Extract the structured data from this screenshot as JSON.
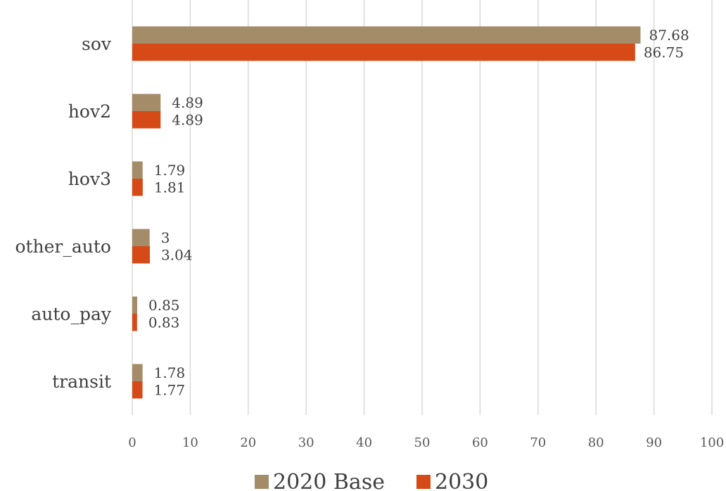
{
  "chart_data": {
    "type": "bar",
    "orientation": "horizontal",
    "title": "",
    "xlabel": "",
    "ylabel": "",
    "categories": [
      "sov",
      "hov2",
      "hov3",
      "other_auto",
      "auto_pay",
      "transit"
    ],
    "series": [
      {
        "name": "2020 Base",
        "color": "#a58c69",
        "values": [
          87.68,
          4.89,
          1.79,
          3,
          0.85,
          1.78
        ],
        "labels": [
          "87.68",
          "4.89",
          "1.79",
          "3",
          "0.85",
          "1.78"
        ]
      },
      {
        "name": "2030",
        "color": "#d64a18",
        "values": [
          86.75,
          4.89,
          1.81,
          3.04,
          0.83,
          1.77
        ],
        "labels": [
          "86.75",
          "4.89",
          "1.81",
          "3.04",
          "0.83",
          "1.77"
        ]
      }
    ],
    "xlim": [
      0,
      100
    ],
    "ticks": [
      "0",
      "10",
      "20",
      "30",
      "40",
      "50",
      "60",
      "70",
      "80",
      "90",
      "100"
    ],
    "grid": true,
    "legend_position": "bottom"
  }
}
